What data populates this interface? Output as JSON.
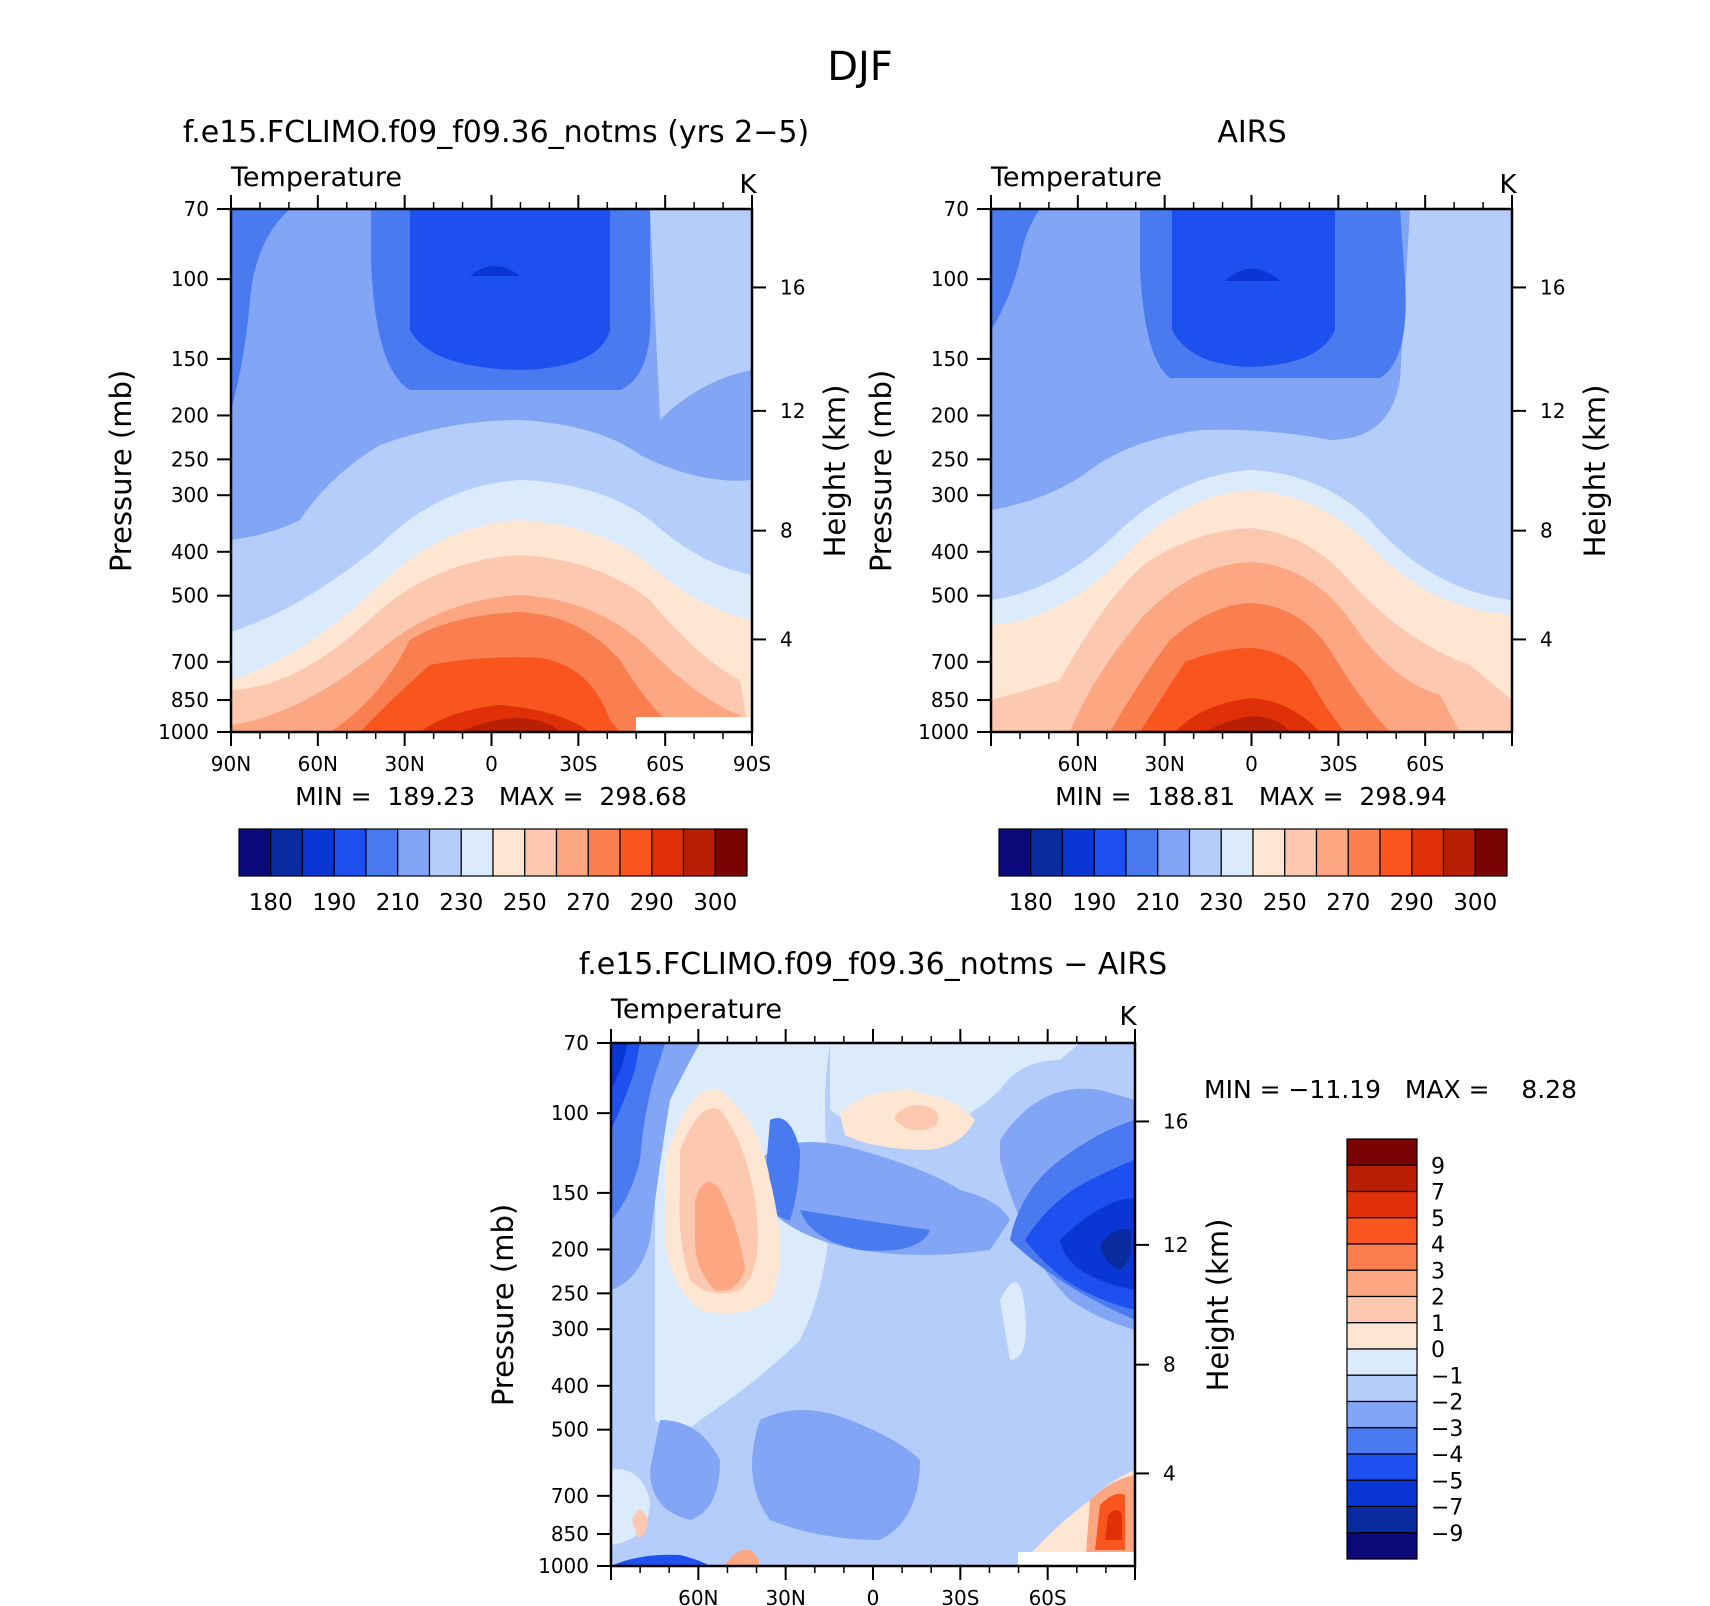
{
  "figure": {
    "title": "DJF"
  },
  "chart_data": [
    {
      "type": "heatmap",
      "panel": "top-left",
      "title": "f.e15.FCLIMO.f09_f09.36_notms (yrs 2−5)",
      "subtitle": "Temperature",
      "units": "K",
      "ylabel": "Pressure (mb)",
      "ylabel_right": "Height (km)",
      "xlabel": "",
      "xticks": [
        "90N",
        "60N",
        "30N",
        "0",
        "30S",
        "60S",
        "90S"
      ],
      "xtick_values": [
        -90,
        -60,
        -30,
        0,
        30,
        60,
        90
      ],
      "xlim": [
        -90,
        90
      ],
      "yticks": [
        70,
        100,
        150,
        200,
        250,
        300,
        400,
        500,
        700,
        850,
        1000
      ],
      "ylim": [
        70,
        1000
      ],
      "yscale": "log",
      "height_ticks": [
        4,
        8,
        12,
        16
      ],
      "stats": "MIN =  189.23   MAX =  298.68",
      "colorbar": {
        "orientation": "horizontal",
        "levels": [
          175,
          180,
          185,
          190,
          200,
          210,
          220,
          230,
          240,
          250,
          260,
          270,
          280,
          290,
          295,
          300
        ],
        "labels": [
          "180",
          "190",
          "210",
          "230",
          "250",
          "270",
          "290",
          "300"
        ],
        "colors": [
          "#0a0a7a",
          "#0a2aa0",
          "#0a37d4",
          "#1e50f0",
          "#4a7af0",
          "#82a6f5",
          "#b4cdfa",
          "#dcebfc",
          "#ffe6d2",
          "#fcc8b0",
          "#fca682",
          "#fa7f50",
          "#f9561f",
          "#e03008",
          "#b81f05",
          "#7a0303"
        ]
      }
    },
    {
      "type": "heatmap",
      "panel": "top-right",
      "title": "AIRS",
      "subtitle": "Temperature",
      "units": "K",
      "ylabel": "Pressure (mb)",
      "ylabel_right": "Height (km)",
      "xlabel": "",
      "xticks": [
        "60N",
        "30N",
        "0",
        "30S",
        "60S"
      ],
      "xtick_values": [
        -60,
        -30,
        0,
        30,
        60
      ],
      "xlim": [
        -90,
        90
      ],
      "yticks": [
        70,
        100,
        150,
        200,
        250,
        300,
        400,
        500,
        700,
        850,
        1000
      ],
      "ylim": [
        70,
        1000
      ],
      "yscale": "log",
      "height_ticks": [
        4,
        8,
        12,
        16
      ],
      "stats": "MIN =  188.81   MAX =  298.94",
      "colorbar": {
        "orientation": "horizontal",
        "labels": [
          "180",
          "190",
          "210",
          "230",
          "250",
          "270",
          "290",
          "300"
        ]
      }
    },
    {
      "type": "heatmap",
      "panel": "bottom",
      "title": "f.e15.FCLIMO.f09_f09.36_notms − AIRS",
      "subtitle": "Temperature",
      "units": "K",
      "ylabel": "Pressure (mb)",
      "ylabel_right": "Height (km)",
      "xlabel": "",
      "xticks": [
        "60N",
        "30N",
        "0",
        "30S",
        "60S"
      ],
      "xtick_values": [
        -60,
        -30,
        0,
        30,
        60
      ],
      "xlim": [
        -90,
        90
      ],
      "yticks": [
        70,
        100,
        150,
        200,
        250,
        300,
        400,
        500,
        700,
        850,
        1000
      ],
      "ylim": [
        70,
        1000
      ],
      "yscale": "log",
      "height_ticks": [
        4,
        8,
        12,
        16
      ],
      "stats": "MIN = −11.19   MAX =    8.28",
      "colorbar": {
        "orientation": "vertical",
        "labels": [
          "9",
          "7",
          "5",
          "4",
          "3",
          "2",
          "1",
          "0",
          "−1",
          "−2",
          "−3",
          "−4",
          "−5",
          "−7",
          "−9"
        ],
        "colors": [
          "#7a0303",
          "#b81f05",
          "#e03008",
          "#f9561f",
          "#fa7f50",
          "#fca682",
          "#fcc8b0",
          "#ffe6d2",
          "#dcebfc",
          "#b4cdfa",
          "#82a6f5",
          "#4a7af0",
          "#1e50f0",
          "#0a37d4",
          "#0a2aa0",
          "#0a0a7a"
        ]
      }
    }
  ]
}
